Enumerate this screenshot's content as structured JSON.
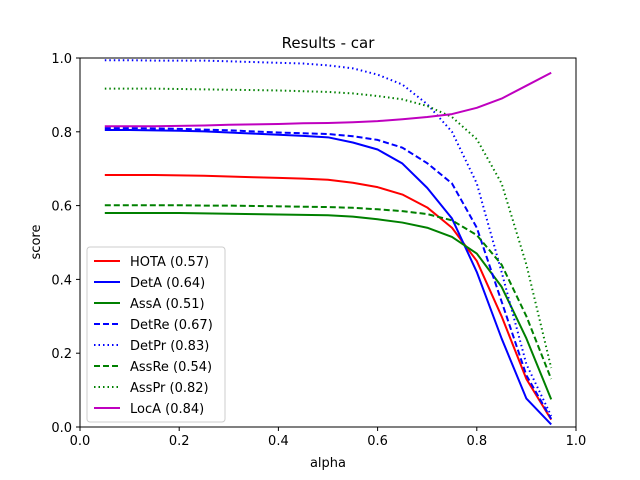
{
  "chart_data": {
    "type": "line",
    "title": "Results - car",
    "xlabel": "alpha",
    "ylabel": "score",
    "xlim": [
      0.0,
      1.0
    ],
    "ylim": [
      0.0,
      1.0
    ],
    "xticks": [
      "0.0",
      "0.2",
      "0.4",
      "0.6",
      "0.8",
      "1.0"
    ],
    "yticks": [
      "0.0",
      "0.2",
      "0.4",
      "0.6",
      "0.8",
      "1.0"
    ],
    "grid": false,
    "legend_position": "lower-left",
    "x": [
      0.05,
      0.1,
      0.15,
      0.2,
      0.25,
      0.3,
      0.35,
      0.4,
      0.45,
      0.5,
      0.55,
      0.6,
      0.65,
      0.7,
      0.75,
      0.8,
      0.85,
      0.9,
      0.95
    ],
    "series": [
      {
        "name": "HOTA (0.57)",
        "color": "#ff0000",
        "dash": "solid",
        "values": [
          0.683,
          0.683,
          0.683,
          0.682,
          0.681,
          0.679,
          0.677,
          0.675,
          0.673,
          0.67,
          0.662,
          0.65,
          0.63,
          0.595,
          0.54,
          0.45,
          0.3,
          0.13,
          0.02
        ]
      },
      {
        "name": "DetA (0.64)",
        "color": "#0000ff",
        "dash": "solid",
        "values": [
          0.805,
          0.805,
          0.804,
          0.803,
          0.801,
          0.798,
          0.795,
          0.792,
          0.789,
          0.785,
          0.771,
          0.752,
          0.714,
          0.648,
          0.565,
          0.42,
          0.24,
          0.077,
          0.007
        ]
      },
      {
        "name": "AssA (0.51)",
        "color": "#008000",
        "dash": "solid",
        "values": [
          0.58,
          0.58,
          0.58,
          0.58,
          0.579,
          0.578,
          0.577,
          0.576,
          0.575,
          0.574,
          0.57,
          0.563,
          0.554,
          0.54,
          0.515,
          0.47,
          0.38,
          0.24,
          0.075
        ]
      },
      {
        "name": "DetRe (0.67)",
        "color": "#0000ff",
        "dash": "dashed",
        "values": [
          0.81,
          0.81,
          0.809,
          0.808,
          0.806,
          0.804,
          0.801,
          0.798,
          0.796,
          0.794,
          0.788,
          0.778,
          0.757,
          0.715,
          0.66,
          0.54,
          0.34,
          0.14,
          0.022
        ]
      },
      {
        "name": "DetPr (0.83)",
        "color": "#0000ff",
        "dash": "dotted",
        "values": [
          0.994,
          0.994,
          0.993,
          0.993,
          0.993,
          0.991,
          0.989,
          0.987,
          0.985,
          0.98,
          0.972,
          0.955,
          0.928,
          0.875,
          0.8,
          0.66,
          0.42,
          0.17,
          0.03
        ]
      },
      {
        "name": "AssRe (0.54)",
        "color": "#008000",
        "dash": "dashed",
        "values": [
          0.601,
          0.601,
          0.601,
          0.601,
          0.6,
          0.6,
          0.599,
          0.598,
          0.597,
          0.596,
          0.594,
          0.59,
          0.585,
          0.577,
          0.56,
          0.52,
          0.44,
          0.3,
          0.13
        ]
      },
      {
        "name": "AssPr (0.82)",
        "color": "#008000",
        "dash": "dotted",
        "values": [
          0.917,
          0.917,
          0.917,
          0.916,
          0.915,
          0.914,
          0.913,
          0.912,
          0.91,
          0.908,
          0.904,
          0.897,
          0.888,
          0.87,
          0.84,
          0.78,
          0.66,
          0.44,
          0.16
        ]
      },
      {
        "name": "LocA (0.84)",
        "color": "#bf00bf",
        "dash": "solid",
        "values": [
          0.815,
          0.815,
          0.815,
          0.816,
          0.817,
          0.819,
          0.82,
          0.821,
          0.823,
          0.824,
          0.826,
          0.829,
          0.834,
          0.84,
          0.848,
          0.865,
          0.89,
          0.925,
          0.96
        ]
      }
    ]
  }
}
